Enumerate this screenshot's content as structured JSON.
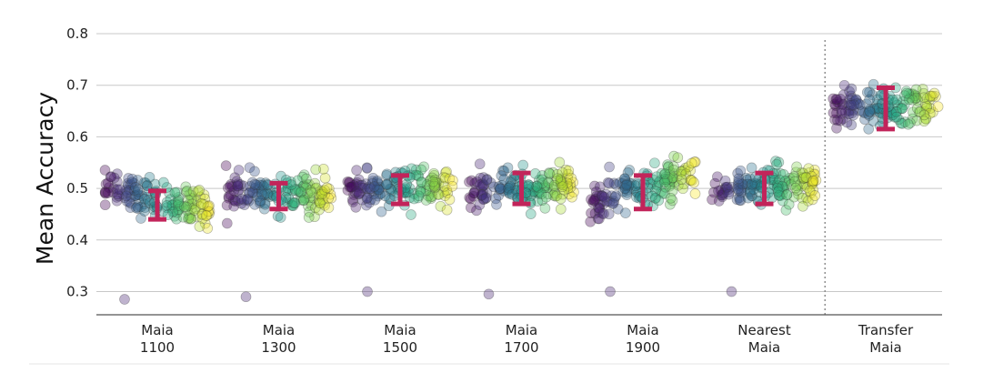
{
  "chart_data": {
    "type": "scatter",
    "subtype": "jittered strip plot with mean and error bars",
    "ylabel": "Mean Accuracy",
    "xlabel": "",
    "title": "",
    "ylim": [
      0.255,
      0.83
    ],
    "yticks": [
      "0.3",
      "0.4",
      "0.5",
      "0.6",
      "0.7",
      "0.8"
    ],
    "grid": "horizontal",
    "colormap": "viridis",
    "separator_after_category": 5,
    "categories": [
      {
        "line1": "Maia",
        "line2": "1100"
      },
      {
        "line1": "Maia",
        "line2": "1300"
      },
      {
        "line1": "Maia",
        "line2": "1500"
      },
      {
        "line1": "Maia",
        "line2": "1700"
      },
      {
        "line1": "Maia",
        "line2": "1900"
      },
      {
        "line1": "Nearest",
        "line2": "Maia"
      },
      {
        "line1": "Transfer",
        "line2": "Maia"
      }
    ],
    "groups": [
      {
        "mean": 0.465,
        "err_low": 0.44,
        "err_high": 0.495,
        "center": 0.48,
        "spread": 0.03,
        "tilt": -0.035,
        "outlier": 0.285
      },
      {
        "mean": 0.485,
        "err_low": 0.46,
        "err_high": 0.51,
        "center": 0.49,
        "spread": 0.03,
        "tilt": -0.01,
        "outlier": 0.29
      },
      {
        "mean": 0.5,
        "err_low": 0.47,
        "err_high": 0.525,
        "center": 0.5,
        "spread": 0.03,
        "tilt": 0.01,
        "outlier": 0.3
      },
      {
        "mean": 0.5,
        "err_low": 0.47,
        "err_high": 0.53,
        "center": 0.5,
        "spread": 0.03,
        "tilt": 0.02,
        "outlier": 0.295
      },
      {
        "mean": 0.495,
        "err_low": 0.46,
        "err_high": 0.525,
        "center": 0.5,
        "spread": 0.032,
        "tilt": 0.06,
        "outlier": 0.3
      },
      {
        "mean": 0.5,
        "err_low": 0.47,
        "err_high": 0.53,
        "center": 0.505,
        "spread": 0.03,
        "tilt": 0.02,
        "outlier": 0.3
      },
      {
        "mean": 0.655,
        "err_low": 0.615,
        "err_high": 0.695,
        "center": 0.655,
        "spread": 0.035,
        "tilt": 0.0,
        "outlier": null
      }
    ],
    "point_count_per_group": 160,
    "error_bar_color": "#c2245a",
    "gridline_color": "#c8c8c8",
    "separator_color": "#888888"
  }
}
